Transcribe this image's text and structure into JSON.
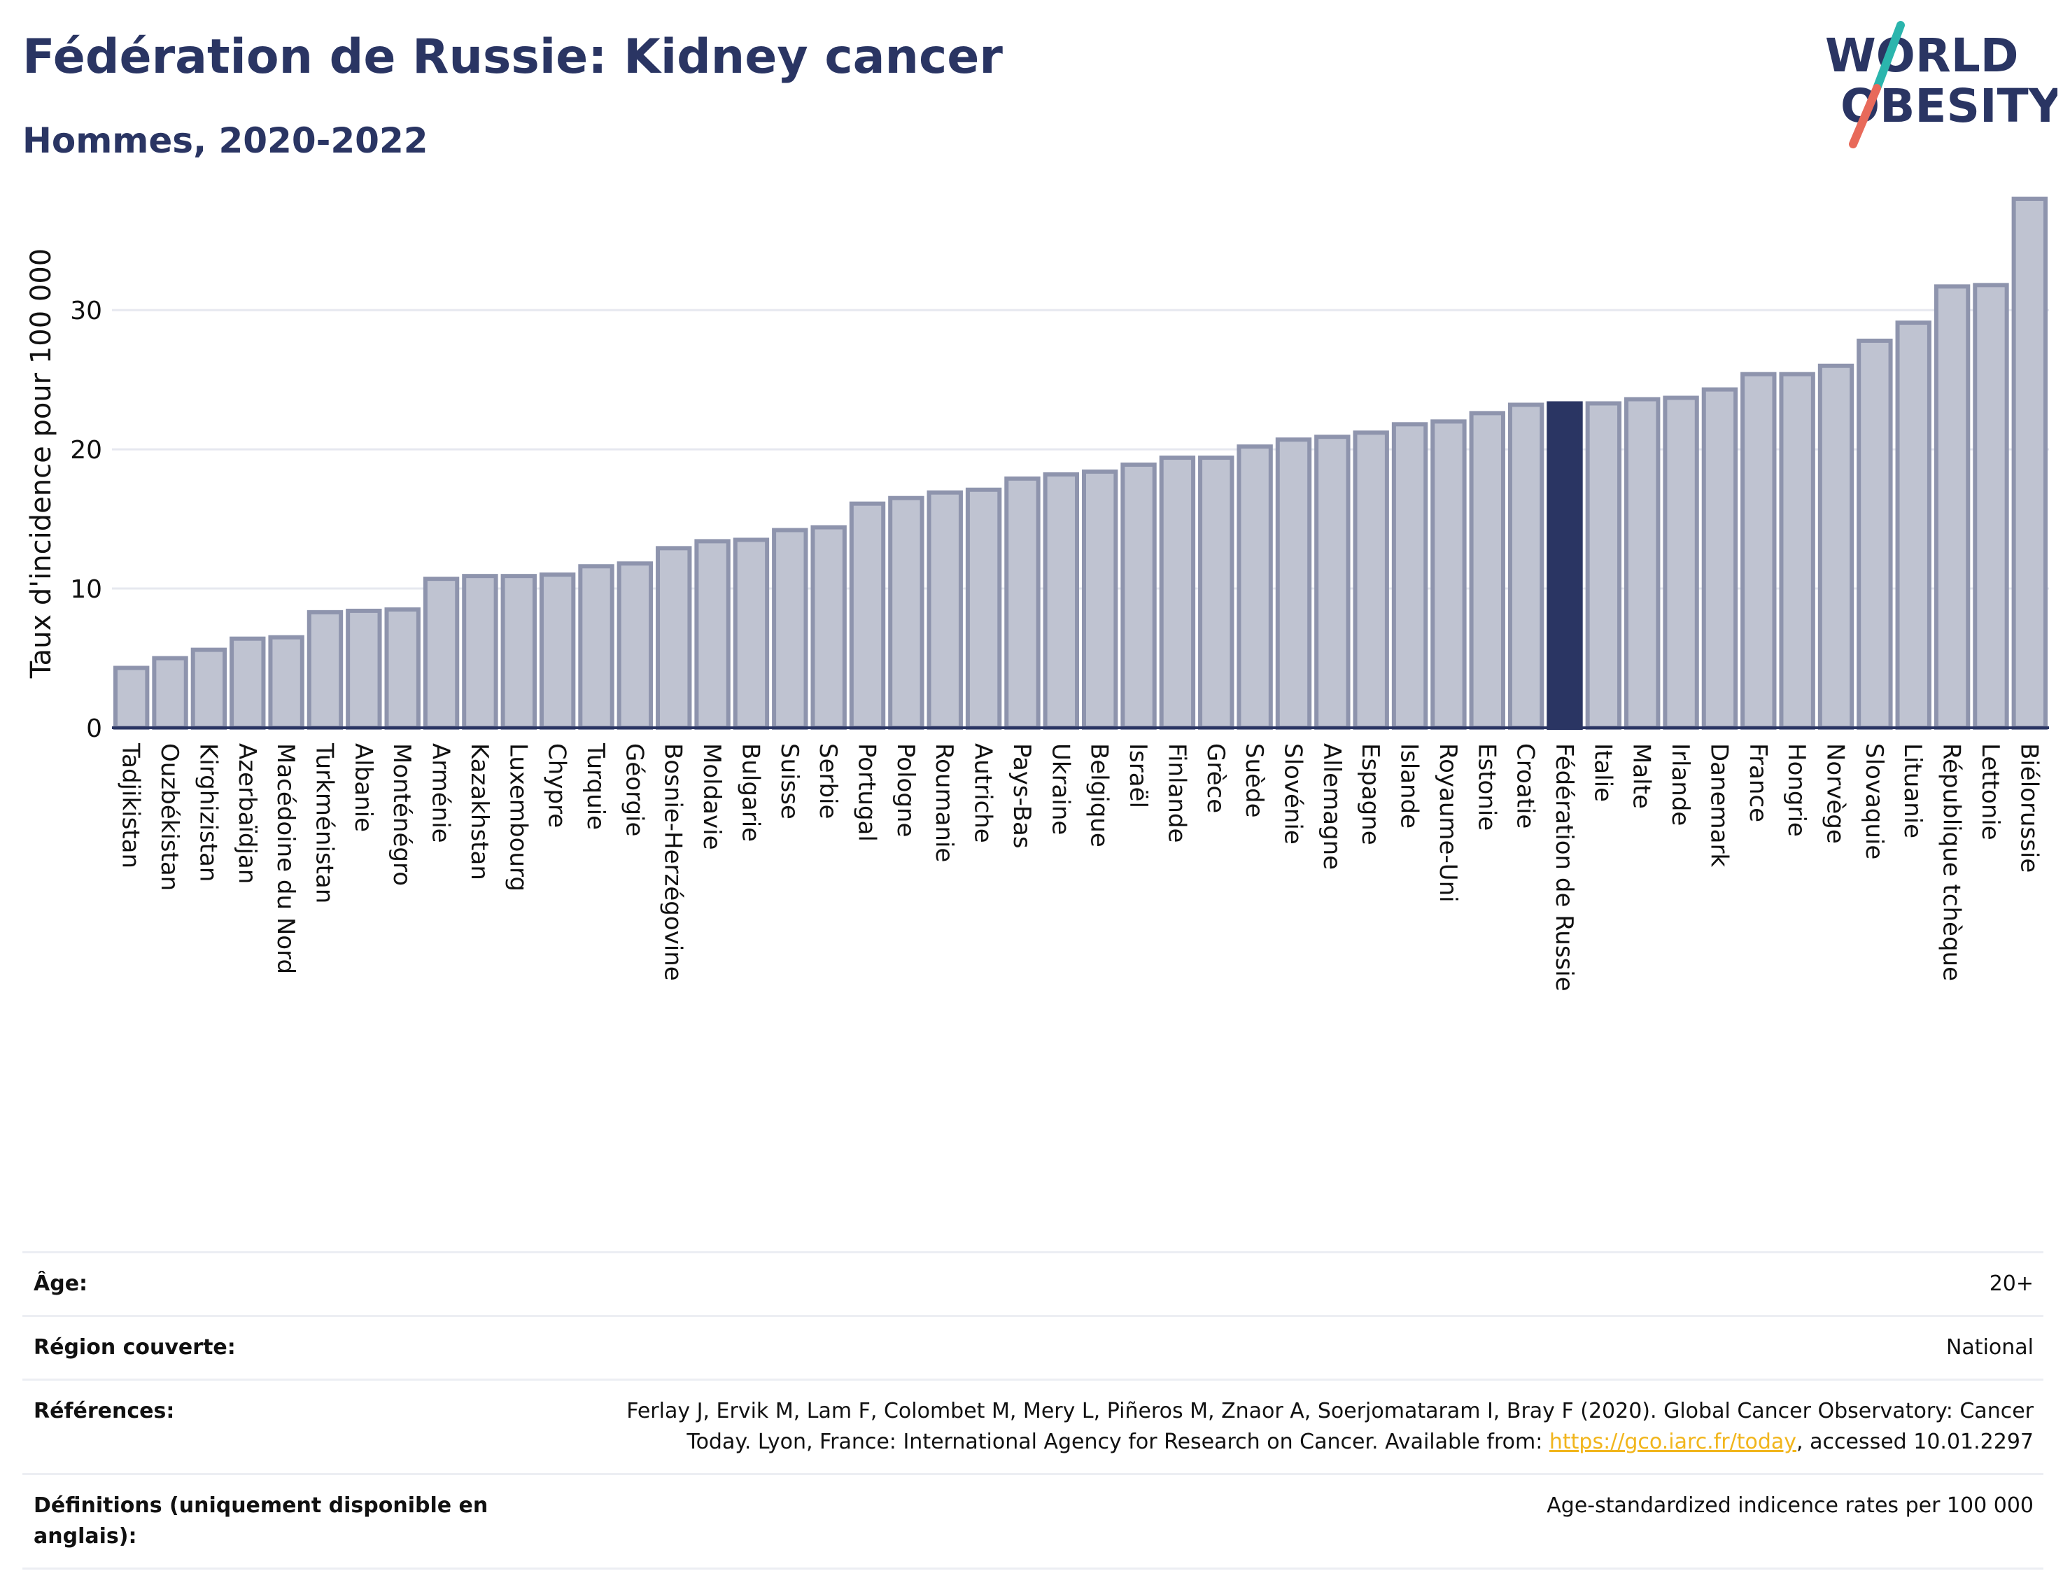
{
  "header": {
    "title": "Fédération de Russie: Kidney cancer",
    "subtitle": "Hommes, 2020-2022"
  },
  "logo": {
    "line1": "WORLD",
    "line2": "OBESITY",
    "colors": {
      "text": "#2a3563",
      "slash_teal": "#2bb5ad",
      "slash_red": "#e86a5a"
    }
  },
  "chart_data": {
    "type": "bar",
    "title": "Fédération de Russie: Kidney cancer",
    "subtitle": "Hommes, 2020-2022",
    "xlabel": "",
    "ylabel": "Taux d'incidence pour 100 000",
    "ylim": [
      0,
      38
    ],
    "yticks": [
      0,
      10,
      20,
      30
    ],
    "grid": true,
    "highlight": "Fédération de Russie",
    "colors": {
      "bar": "#bfc3d1",
      "bar_edge": "#8e94ad",
      "highlight": "#2a3563",
      "grid": "#e6e8ef",
      "axis": "#2a3563"
    },
    "categories": [
      "Tadjikistan",
      "Ouzbékistan",
      "Kirghizistan",
      "Azerbaïdjan",
      "Macédoine du Nord",
      "Turkménistan",
      "Albanie",
      "Monténégro",
      "Arménie",
      "Kazakhstan",
      "Luxembourg",
      "Chypre",
      "Turquie",
      "Géorgie",
      "Bosnie-Herzégovine",
      "Moldavie",
      "Bulgarie",
      "Suisse",
      "Serbie",
      "Portugal",
      "Pologne",
      "Roumanie",
      "Autriche",
      "Pays-Bas",
      "Ukraine",
      "Belgique",
      "Israël",
      "Finlande",
      "Grèce",
      "Suède",
      "Slovénie",
      "Allemagne",
      "Espagne",
      "Islande",
      "Royaume-Uni",
      "Estonie",
      "Croatie",
      "Fédération de Russie",
      "Italie",
      "Malte",
      "Irlande",
      "Danemark",
      "France",
      "Hongrie",
      "Norvège",
      "Slovaquie",
      "Lituanie",
      "République tchèque",
      "Lettonie",
      "Biélorussie"
    ],
    "values": [
      4.3,
      5.0,
      5.6,
      6.4,
      6.5,
      8.3,
      8.4,
      8.5,
      10.7,
      10.9,
      10.9,
      11.0,
      11.6,
      11.8,
      12.9,
      13.4,
      13.5,
      14.2,
      14.4,
      16.1,
      16.5,
      16.9,
      17.1,
      17.9,
      18.2,
      18.4,
      18.9,
      19.4,
      19.4,
      20.2,
      20.7,
      20.9,
      21.2,
      21.8,
      22.0,
      22.6,
      23.2,
      23.3,
      23.3,
      23.6,
      23.7,
      24.3,
      25.4,
      25.4,
      26.0,
      27.8,
      29.1,
      31.7,
      31.8,
      38.0
    ]
  },
  "info": {
    "age_label": "Âge:",
    "age_value": "20+",
    "region_label": "Région couverte:",
    "region_value": "National",
    "references_label": "Références:",
    "references_text1": "Ferlay J, Ervik M, Lam F, Colombet M, Mery L, Piñeros M, Znaor A, Soerjomataram I, Bray F (2020). Global Cancer Observatory: Cancer",
    "references_text2": "Today. Lyon, France: International Agency for Research on Cancer. Available from: ",
    "references_link": "https://gco.iarc.fr/today",
    "references_text3": ", accessed 10.01.2297",
    "definitions_label": "Définitions (uniquement disponible en anglais):",
    "definitions_value": "Age-standardized indicence rates per 100 000"
  }
}
